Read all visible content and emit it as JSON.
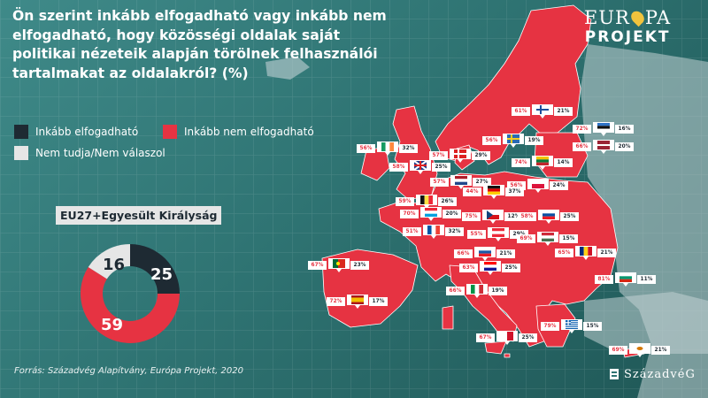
{
  "title": "Ön szerint inkább elfogadható vagy inkább nem elfogadható, hogy közösségi oldalak saját politikai nézeteik alapján törölnek felhasználói tartalmakat az oldalakról? (%)",
  "legend": [
    {
      "label": "Inkább elfogadható",
      "color": "#1e2a33"
    },
    {
      "label": "Inkább nem elfogadható",
      "color": "#e63342"
    },
    {
      "label": "Nem tudja/Nem válaszol",
      "color": "#e6e6e6"
    }
  ],
  "logo": {
    "line1": "EUR",
    "line1b": "PA",
    "line2": "PROJEKT"
  },
  "publisher": "SzázadvéG",
  "source": "Forrás: Századvég Alapítvány, Európa Projekt, 2020",
  "chart_data": [
    {
      "type": "pie",
      "title": "EU27+Egyesült Királyság",
      "categories": [
        "Inkább elfogadható",
        "Inkább nem elfogadható",
        "Nem tudja/Nem válaszol"
      ],
      "values": [
        25,
        59,
        16
      ],
      "colors": [
        "#1e2a33",
        "#e63342",
        "#e6e6e6"
      ]
    },
    {
      "type": "bar",
      "series_names": [
        "Inkább nem elfogadható",
        "Inkább elfogadható"
      ],
      "countries": [
        {
          "code": "fi",
          "flag": "finland-flag",
          "not_ok": "61%",
          "ok": "21%"
        },
        {
          "code": "ee",
          "flag": "estonia-flag",
          "not_ok": "72%",
          "ok": "16%"
        },
        {
          "code": "se",
          "flag": "sweden-flag",
          "not_ok": "56%",
          "ok": "19%"
        },
        {
          "code": "lv",
          "flag": "latvia-flag",
          "not_ok": "66%",
          "ok": "20%"
        },
        {
          "code": "ie",
          "flag": "ireland-flag",
          "not_ok": "56%",
          "ok": "32%"
        },
        {
          "code": "dk",
          "flag": "denmark-flag",
          "not_ok": "57%",
          "ok": "29%"
        },
        {
          "code": "lt",
          "flag": "lithuania-flag",
          "not_ok": "74%",
          "ok": "14%"
        },
        {
          "code": "uk",
          "flag": "united-kingdom-flag",
          "not_ok": "58%",
          "ok": "25%"
        },
        {
          "code": "nl",
          "flag": "netherlands-flag",
          "not_ok": "57%",
          "ok": "27%"
        },
        {
          "code": "pl",
          "flag": "poland-flag",
          "not_ok": "56%",
          "ok": "24%"
        },
        {
          "code": "be",
          "flag": "belgium-flag",
          "not_ok": "59%",
          "ok": "26%"
        },
        {
          "code": "de",
          "flag": "germany-flag",
          "not_ok": "44%",
          "ok": "37%"
        },
        {
          "code": "lu",
          "flag": "luxembourg-flag",
          "not_ok": "70%",
          "ok": "20%"
        },
        {
          "code": "cz",
          "flag": "czechia-flag",
          "not_ok": "75%",
          "ok": "12%"
        },
        {
          "code": "sk",
          "flag": "slovakia-flag",
          "not_ok": "58%",
          "ok": "25%"
        },
        {
          "code": "fr",
          "flag": "france-flag",
          "not_ok": "51%",
          "ok": "32%"
        },
        {
          "code": "at",
          "flag": "austria-flag",
          "not_ok": "55%",
          "ok": "29%"
        },
        {
          "code": "hu",
          "flag": "hungary-flag",
          "not_ok": "69%",
          "ok": "15%"
        },
        {
          "code": "si",
          "flag": "slovenia-flag",
          "not_ok": "66%",
          "ok": "21%"
        },
        {
          "code": "ro",
          "flag": "romania-flag",
          "not_ok": "65%",
          "ok": "21%"
        },
        {
          "code": "pt",
          "flag": "portugal-flag",
          "not_ok": "67%",
          "ok": "23%"
        },
        {
          "code": "hr",
          "flag": "croatia-flag",
          "not_ok": "63%",
          "ok": "25%"
        },
        {
          "code": "bg",
          "flag": "bulgaria-flag",
          "not_ok": "81%",
          "ok": "11%"
        },
        {
          "code": "it",
          "flag": "italy-flag",
          "not_ok": "66%",
          "ok": "19%"
        },
        {
          "code": "es",
          "flag": "spain-flag",
          "not_ok": "72%",
          "ok": "17%"
        },
        {
          "code": "gr",
          "flag": "greece-flag",
          "not_ok": "79%",
          "ok": "15%"
        },
        {
          "code": "mt",
          "flag": "malta-flag",
          "not_ok": "67%",
          "ok": "25%"
        },
        {
          "code": "cy",
          "flag": "cyprus-flag",
          "not_ok": "69%",
          "ok": "21%"
        }
      ]
    }
  ]
}
